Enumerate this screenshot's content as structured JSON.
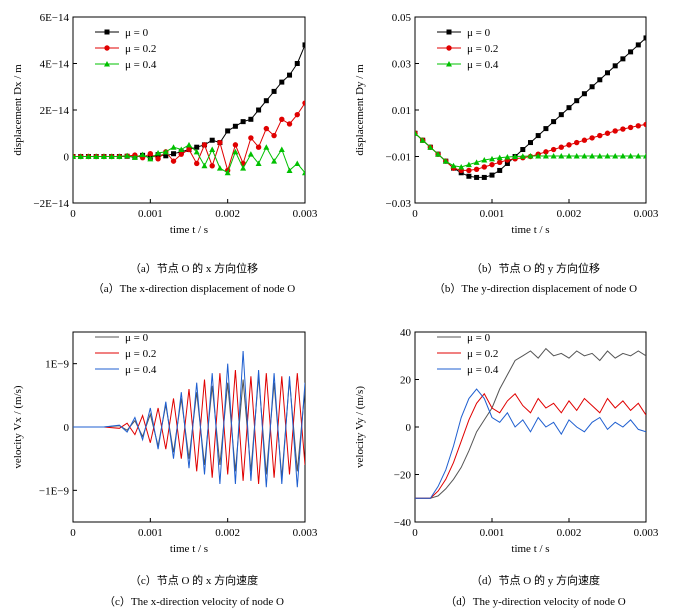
{
  "colors": {
    "black": "#000000",
    "red": "#e00000",
    "green": "#00c000",
    "blue": "#1f5fd0"
  },
  "chart_data": [
    {
      "id": "a",
      "type": "line",
      "xlabel": "time t / s",
      "ylabel": "displacement Dx / m",
      "xlim": [
        0,
        0.003
      ],
      "ylim": [
        -2e-14,
        6e-14
      ],
      "xticks": [
        0,
        0.001,
        0.002,
        0.003
      ],
      "xtick_labels": [
        "0",
        "0.001",
        "0.002",
        "0.003"
      ],
      "yticks": [
        -2e-14,
        0,
        2e-14,
        4e-14,
        6e-14
      ],
      "ytick_labels": [
        "−2E−14",
        "0",
        "2E−14",
        "4E−14",
        "6E−14"
      ],
      "legend": "top-left",
      "series": [
        {
          "name": "μ = 0",
          "color": "#000000",
          "marker": "square",
          "x": [
            0,
            0.0001,
            0.0002,
            0.0003,
            0.0004,
            0.0005,
            0.0006,
            0.0007,
            0.0008,
            0.0009,
            0.001,
            0.0011,
            0.0012,
            0.0013,
            0.0014,
            0.0015,
            0.0016,
            0.0017,
            0.0018,
            0.0019,
            0.002,
            0.0021,
            0.0022,
            0.0023,
            0.0024,
            0.0025,
            0.0026,
            0.0027,
            0.0028,
            0.0029,
            0.003
          ],
          "y": [
            0,
            0,
            0,
            0,
            0,
            0,
            0,
            1e-16,
            -3e-16,
            5e-16,
            -5e-16,
            8e-16,
            3e-16,
            1.2e-15,
            2e-15,
            3e-15,
            4e-15,
            5e-15,
            7e-15,
            6e-15,
            1.1e-14,
            1.3e-14,
            1.5e-14,
            1.6e-14,
            2e-14,
            2.4e-14,
            2.8e-14,
            3.2e-14,
            3.5e-14,
            4e-14,
            4.8e-14
          ]
        },
        {
          "name": "μ = 0.2",
          "color": "#e00000",
          "marker": "circle",
          "x": [
            0,
            0.0001,
            0.0002,
            0.0003,
            0.0004,
            0.0005,
            0.0006,
            0.0007,
            0.0008,
            0.0009,
            0.001,
            0.0011,
            0.0012,
            0.0013,
            0.0014,
            0.0015,
            0.0016,
            0.0017,
            0.0018,
            0.0019,
            0.002,
            0.0021,
            0.0022,
            0.0023,
            0.0024,
            0.0025,
            0.0026,
            0.0027,
            0.0028,
            0.0029,
            0.003
          ],
          "y": [
            0,
            0,
            0,
            0,
            0,
            0,
            0,
            2e-16,
            6e-16,
            -5e-16,
            1.2e-15,
            -1e-15,
            2e-15,
            -2e-15,
            1e-15,
            3e-15,
            -3e-15,
            5e-15,
            -4e-15,
            6e-15,
            -6e-15,
            5e-15,
            -3e-15,
            8e-15,
            4e-15,
            1.2e-14,
            9e-15,
            1.6e-14,
            1.4e-14,
            1.8e-14,
            2.3e-14
          ]
        },
        {
          "name": "μ = 0.4",
          "color": "#00c000",
          "marker": "triangle",
          "x": [
            0,
            0.0001,
            0.0002,
            0.0003,
            0.0004,
            0.0005,
            0.0006,
            0.0007,
            0.0008,
            0.0009,
            0.001,
            0.0011,
            0.0012,
            0.0013,
            0.0014,
            0.0015,
            0.0016,
            0.0017,
            0.0018,
            0.0019,
            0.002,
            0.0021,
            0.0022,
            0.0023,
            0.0024,
            0.0025,
            0.0026,
            0.0027,
            0.0028,
            0.0029,
            0.003
          ],
          "y": [
            0,
            0,
            0,
            0,
            0,
            0,
            0,
            3e-16,
            -4e-16,
            8e-16,
            -1e-15,
            1.5e-15,
            2e-15,
            4e-15,
            3e-15,
            5e-15,
            2e-15,
            -4e-15,
            3e-15,
            -5e-15,
            -7e-15,
            2e-15,
            -5e-15,
            1e-15,
            -3e-15,
            4e-15,
            -2e-15,
            3e-15,
            -6e-15,
            -3e-15,
            -7e-15
          ]
        }
      ],
      "caption_cn": "（a）节点 O 的 x 方向位移",
      "caption_en": "（a）The x-direction displacement of node O"
    },
    {
      "id": "b",
      "type": "line",
      "xlabel": "time t / s",
      "ylabel": "displacement Dy / m",
      "xlim": [
        0,
        0.003
      ],
      "ylim": [
        -0.03,
        0.05
      ],
      "xticks": [
        0,
        0.001,
        0.002,
        0.003
      ],
      "xtick_labels": [
        "0",
        "0.001",
        "0.002",
        "0.003"
      ],
      "yticks": [
        -0.03,
        -0.01,
        0.01,
        0.03,
        0.05
      ],
      "ytick_labels": [
        "−0.03",
        "−0.01",
        "0.01",
        "0.03",
        "0.05"
      ],
      "legend": "top-left",
      "series": [
        {
          "name": "μ = 0",
          "color": "#000000",
          "marker": "square",
          "x": [
            0,
            0.0001,
            0.0002,
            0.0003,
            0.0004,
            0.0005,
            0.0006,
            0.0007,
            0.0008,
            0.0009,
            0.001,
            0.0011,
            0.0012,
            0.0013,
            0.0014,
            0.0015,
            0.0016,
            0.0017,
            0.0018,
            0.0019,
            0.002,
            0.0021,
            0.0022,
            0.0023,
            0.0024,
            0.0025,
            0.0026,
            0.0027,
            0.0028,
            0.0029,
            0.003
          ],
          "y": [
            0,
            -0.003,
            -0.006,
            -0.009,
            -0.012,
            -0.015,
            -0.017,
            -0.0185,
            -0.019,
            -0.019,
            -0.018,
            -0.016,
            -0.013,
            -0.01,
            -0.007,
            -0.004,
            -0.001,
            0.002,
            0.005,
            0.008,
            0.011,
            0.014,
            0.017,
            0.02,
            0.023,
            0.026,
            0.029,
            0.032,
            0.035,
            0.038,
            0.041
          ]
        },
        {
          "name": "μ = 0.2",
          "color": "#e00000",
          "marker": "circle",
          "x": [
            0,
            0.0001,
            0.0002,
            0.0003,
            0.0004,
            0.0005,
            0.0006,
            0.0007,
            0.0008,
            0.0009,
            0.001,
            0.0011,
            0.0012,
            0.0013,
            0.0014,
            0.0015,
            0.0016,
            0.0017,
            0.0018,
            0.0019,
            0.002,
            0.0021,
            0.0022,
            0.0023,
            0.0024,
            0.0025,
            0.0026,
            0.0027,
            0.0028,
            0.0029,
            0.003
          ],
          "y": [
            0,
            -0.003,
            -0.006,
            -0.009,
            -0.012,
            -0.015,
            -0.016,
            -0.016,
            -0.0155,
            -0.0145,
            -0.0135,
            -0.0125,
            -0.0115,
            -0.011,
            -0.0105,
            -0.01,
            -0.009,
            -0.008,
            -0.007,
            -0.006,
            -0.005,
            -0.004,
            -0.003,
            -0.002,
            -0.001,
            0,
            0.001,
            0.0018,
            0.0025,
            0.0032,
            0.0038
          ]
        },
        {
          "name": "μ = 0.4",
          "color": "#00c000",
          "marker": "triangle",
          "x": [
            0,
            0.0001,
            0.0002,
            0.0003,
            0.0004,
            0.0005,
            0.0006,
            0.0007,
            0.0008,
            0.0009,
            0.001,
            0.0011,
            0.0012,
            0.0013,
            0.0014,
            0.0015,
            0.0016,
            0.0017,
            0.0018,
            0.0019,
            0.002,
            0.0021,
            0.0022,
            0.0023,
            0.0024,
            0.0025,
            0.0026,
            0.0027,
            0.0028,
            0.0029,
            0.003
          ],
          "y": [
            0,
            -0.003,
            -0.006,
            -0.009,
            -0.012,
            -0.014,
            -0.0145,
            -0.0135,
            -0.0125,
            -0.0115,
            -0.011,
            -0.0105,
            -0.0102,
            -0.01,
            -0.0099,
            -0.0098,
            -0.0098,
            -0.0098,
            -0.0098,
            -0.0098,
            -0.0098,
            -0.0098,
            -0.0098,
            -0.0098,
            -0.0098,
            -0.0098,
            -0.0098,
            -0.0098,
            -0.0098,
            -0.0098,
            -0.0098
          ]
        }
      ],
      "caption_cn": "（b）节点 O 的 y 方向位移",
      "caption_en": "（b）The y-direction displacement of node O"
    },
    {
      "id": "c",
      "type": "line",
      "xlabel": "time t / s",
      "ylabel": "velocity Vx / (m/s)",
      "xlim": [
        0,
        0.003
      ],
      "ylim": [
        -1.5e-09,
        1.5e-09
      ],
      "xticks": [
        0,
        0.001,
        0.002,
        0.003
      ],
      "xtick_labels": [
        "0",
        "0.001",
        "0.002",
        "0.003"
      ],
      "yticks": [
        -1e-09,
        0,
        1e-09
      ],
      "ytick_labels": [
        "−1E−9",
        "0",
        "1E−9"
      ],
      "legend": "top-left",
      "series": [
        {
          "name": "μ = 0",
          "color": "#555555",
          "x": [
            0,
            0.0002,
            0.0004,
            0.0006,
            0.0007,
            0.0008,
            0.0009,
            0.001,
            0.0011,
            0.0012,
            0.0013,
            0.0014,
            0.0015,
            0.0016,
            0.0017,
            0.0018,
            0.0019,
            0.002,
            0.0021,
            0.0022,
            0.0023,
            0.0024,
            0.0025,
            0.0026,
            0.0027,
            0.0028,
            0.0029,
            0.003
          ],
          "y": [
            0,
            0,
            0,
            2e-11,
            -5e-11,
            1e-10,
            -1.5e-10,
            2e-10,
            -3e-10,
            3.5e-10,
            -4e-10,
            4.5e-10,
            -5e-10,
            5.5e-10,
            -6e-10,
            6.5e-10,
            -6e-10,
            7e-10,
            -7e-10,
            7.5e-10,
            -7e-10,
            8e-10,
            -7.5e-10,
            7e-10,
            -8e-10,
            7.5e-10,
            -7e-10,
            6e-10
          ]
        },
        {
          "name": "μ = 0.2",
          "color": "#e00000",
          "x": [
            0,
            0.0002,
            0.0004,
            0.0006,
            0.0007,
            0.0008,
            0.0009,
            0.001,
            0.0011,
            0.0012,
            0.0013,
            0.0014,
            0.0015,
            0.0016,
            0.0017,
            0.0018,
            0.0019,
            0.002,
            0.0021,
            0.0022,
            0.0023,
            0.0024,
            0.0025,
            0.0026,
            0.0027,
            0.0028,
            0.0029,
            0.003
          ],
          "y": [
            0,
            0,
            0,
            -2e-11,
            6e-11,
            -1.2e-10,
            1.8e-10,
            -2.5e-10,
            3e-10,
            -3.5e-10,
            4.5e-10,
            -5e-10,
            6e-10,
            -7e-10,
            7.5e-10,
            -8e-10,
            8.5e-10,
            -7.5e-10,
            9e-10,
            -8.5e-10,
            8e-10,
            -9e-10,
            8.5e-10,
            -8e-10,
            8e-10,
            -7.5e-10,
            8.5e-10,
            -6e-10
          ]
        },
        {
          "name": "μ = 0.4",
          "color": "#1f5fd0",
          "x": [
            0,
            0.0002,
            0.0004,
            0.0006,
            0.0007,
            0.0008,
            0.0009,
            0.001,
            0.0011,
            0.0012,
            0.0013,
            0.0014,
            0.0015,
            0.0016,
            0.0017,
            0.0018,
            0.0019,
            0.002,
            0.0021,
            0.0022,
            0.0023,
            0.0024,
            0.0025,
            0.0026,
            0.0027,
            0.0028,
            0.0029,
            0.003
          ],
          "y": [
            0,
            0,
            0,
            3e-11,
            -8e-11,
            1.5e-10,
            -2e-10,
            3e-10,
            -3.5e-10,
            4e-10,
            -5e-10,
            5.5e-10,
            -6.5e-10,
            7e-10,
            -7.5e-10,
            8.5e-10,
            -9e-10,
            1e-09,
            -9e-10,
            1.2e-09,
            -8.5e-10,
            9e-10,
            -9.5e-10,
            8.5e-10,
            -9e-10,
            8e-10,
            -9.5e-10,
            7e-10
          ]
        }
      ],
      "caption_cn": "（c）节点 O 的 x 方向速度",
      "caption_en": "（c）The x-direction velocity of node O"
    },
    {
      "id": "d",
      "type": "line",
      "xlabel": "time t / s",
      "ylabel": "velocity Vy / (m/s)",
      "xlim": [
        0,
        0.003
      ],
      "ylim": [
        -40,
        40
      ],
      "xticks": [
        0,
        0.001,
        0.002,
        0.003
      ],
      "xtick_labels": [
        "0",
        "0.001",
        "0.002",
        "0.003"
      ],
      "yticks": [
        -40,
        -20,
        0,
        20,
        40
      ],
      "ytick_labels": [
        "−40",
        "−20",
        "0",
        "20",
        "40"
      ],
      "legend": "top-left",
      "series": [
        {
          "name": "μ = 0",
          "color": "#555555",
          "x": [
            0,
            0.0002,
            0.0003,
            0.0004,
            0.0005,
            0.0006,
            0.0007,
            0.0008,
            0.0009,
            0.001,
            0.0011,
            0.0012,
            0.0013,
            0.0014,
            0.0015,
            0.0016,
            0.0017,
            0.0018,
            0.0019,
            0.002,
            0.0021,
            0.0022,
            0.0023,
            0.0024,
            0.0025,
            0.0026,
            0.0027,
            0.0028,
            0.0029,
            0.003
          ],
          "y": [
            -30,
            -30,
            -29,
            -26,
            -22,
            -17,
            -10,
            -2,
            3,
            8,
            16,
            22,
            28,
            30,
            32,
            29,
            33,
            30,
            31,
            29,
            32,
            30,
            31,
            28,
            32,
            29,
            31,
            30,
            32,
            30
          ]
        },
        {
          "name": "μ = 0.2",
          "color": "#e00000",
          "x": [
            0,
            0.0002,
            0.0003,
            0.0004,
            0.0005,
            0.0006,
            0.0007,
            0.0008,
            0.0009,
            0.001,
            0.0011,
            0.0012,
            0.0013,
            0.0014,
            0.0015,
            0.0016,
            0.0017,
            0.0018,
            0.0019,
            0.002,
            0.0021,
            0.0022,
            0.0023,
            0.0024,
            0.0025,
            0.0026,
            0.0027,
            0.0028,
            0.0029,
            0.003
          ],
          "y": [
            -30,
            -30,
            -27,
            -22,
            -15,
            -6,
            3,
            10,
            14,
            8,
            6,
            11,
            14,
            9,
            6,
            12,
            8,
            10,
            6,
            11,
            7,
            12,
            9,
            6,
            12,
            8,
            11,
            7,
            10,
            5
          ]
        },
        {
          "name": "μ = 0.4",
          "color": "#1f5fd0",
          "x": [
            0,
            0.0002,
            0.0003,
            0.0004,
            0.0005,
            0.0006,
            0.0007,
            0.0008,
            0.0009,
            0.001,
            0.0011,
            0.0012,
            0.0013,
            0.0014,
            0.0015,
            0.0016,
            0.0017,
            0.0018,
            0.0019,
            0.002,
            0.0021,
            0.0022,
            0.0023,
            0.0024,
            0.0025,
            0.0026,
            0.0027,
            0.0028,
            0.0029,
            0.003
          ],
          "y": [
            -30,
            -30,
            -25,
            -18,
            -8,
            4,
            12,
            16,
            12,
            4,
            2,
            6,
            0,
            3,
            -2,
            4,
            0,
            2,
            -3,
            3,
            0,
            -2,
            2,
            4,
            -1,
            2,
            0,
            3,
            -1,
            -2
          ]
        }
      ],
      "caption_cn": "（d）节点 O 的 y 方向速度",
      "caption_en": "（d）The y-direction velocity of node O"
    }
  ]
}
